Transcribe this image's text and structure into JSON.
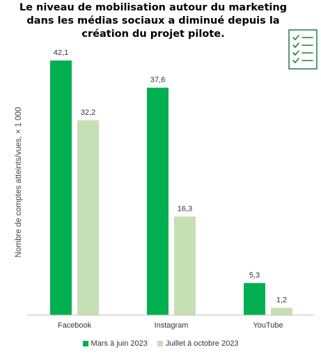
{
  "chart_data": {
    "type": "bar",
    "title": "Le niveau de mobilisation autour du marketing dans les médias sociaux a diminué depuis la création du projet pilote.",
    "ylabel": "Nombre de comptes atteints/vues, × 1 000",
    "xlabel": "",
    "categories": [
      "Facebook",
      "Instagram",
      "YouTube"
    ],
    "series": [
      {
        "name": "Mars à juin 2023",
        "values": [
          42.1,
          37.6,
          5.3
        ],
        "labels": [
          "42,1",
          "37,6",
          "5,3"
        ],
        "color": "#00b050"
      },
      {
        "name": "Juillet à octobre 2023",
        "values": [
          32.2,
          16.3,
          1.2
        ],
        "labels": [
          "32,2",
          "16,3",
          "1,2"
        ],
        "color": "#c5e0b4"
      }
    ],
    "ylim": [
      0,
      44
    ],
    "grid": false,
    "legend_position": "bottom"
  },
  "icon": {
    "name": "checklist-icon",
    "color": "#1e7a45"
  }
}
